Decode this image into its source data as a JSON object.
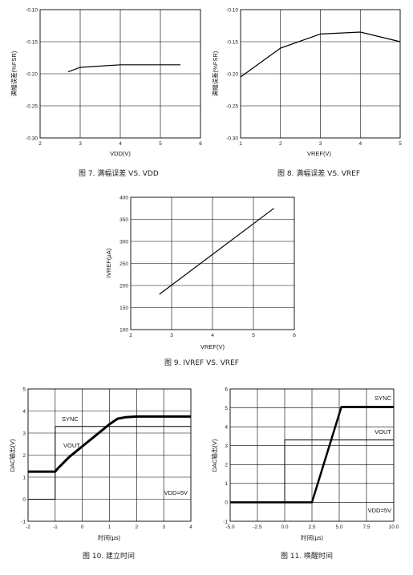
{
  "chart_data": [
    {
      "id": "fig7",
      "type": "line",
      "caption": "图 7. 满幅误差 VS. VDD",
      "xlabel": "VDD(V)",
      "ylabel": "满幅误差(%FSR)",
      "xlim": [
        2,
        6
      ],
      "ylim": [
        -0.3,
        -0.1
      ],
      "xticks": [
        2,
        3,
        4,
        5,
        6
      ],
      "yticks": [
        -0.3,
        -0.25,
        -0.2,
        -0.15,
        -0.1
      ],
      "xtick_labels": [
        "2",
        "3",
        "4",
        "5",
        "6"
      ],
      "ytick_labels": [
        "-0.30",
        "-0.25",
        "-0.20",
        "-0.15",
        "-0.10"
      ],
      "grid": true,
      "series": [
        {
          "x": [
            2.7,
            3.0,
            3.5,
            4.0,
            4.5,
            5.0,
            5.5
          ],
          "y": [
            -0.197,
            -0.19,
            -0.188,
            -0.186,
            -0.186,
            -0.186,
            -0.186
          ]
        }
      ]
    },
    {
      "id": "fig8",
      "type": "line",
      "caption": "图 8. 满幅误差 VS. VREF",
      "xlabel": "VREF(V)",
      "ylabel": "满幅误差(%FSR)",
      "xlim": [
        1,
        5
      ],
      "ylim": [
        -0.3,
        -0.1
      ],
      "xticks": [
        1,
        2,
        3,
        4,
        5
      ],
      "yticks": [
        -0.3,
        -0.25,
        -0.2,
        -0.15,
        -0.1
      ],
      "xtick_labels": [
        "1",
        "2",
        "3",
        "4",
        "5"
      ],
      "ytick_labels": [
        "-0.30",
        "-0.25",
        "-0.20",
        "-0.15",
        "-0.10"
      ],
      "grid": true,
      "series": [
        {
          "x": [
            1,
            2,
            3,
            4,
            5
          ],
          "y": [
            -0.205,
            -0.16,
            -0.138,
            -0.135,
            -0.15
          ]
        }
      ]
    },
    {
      "id": "fig9",
      "type": "line",
      "caption": "图 9. IVREF VS. VREF",
      "xlabel": "VREF(V)",
      "ylabel": "IVREF(μA)",
      "xlim": [
        2,
        6
      ],
      "ylim": [
        100,
        400
      ],
      "xticks": [
        2,
        3,
        4,
        5,
        6
      ],
      "yticks": [
        100,
        150,
        200,
        250,
        300,
        350,
        400
      ],
      "xtick_labels": [
        "2",
        "3",
        "4",
        "5",
        "6"
      ],
      "ytick_labels": [
        "100",
        "150",
        "200",
        "250",
        "300",
        "350",
        "400"
      ],
      "grid": true,
      "series": [
        {
          "x": [
            2.7,
            5.5
          ],
          "y": [
            180,
            375
          ]
        }
      ]
    },
    {
      "id": "fig10",
      "type": "line",
      "caption": "图 10. 建立时间",
      "xlabel": "时间(μs)",
      "ylabel": "DAC输出(V)",
      "xlim": [
        -2,
        4
      ],
      "ylim": [
        -1,
        5
      ],
      "xticks": [
        -2,
        -1,
        0,
        1,
        2,
        3,
        4
      ],
      "yticks": [
        -1,
        0,
        1,
        2,
        3,
        4,
        5
      ],
      "xtick_labels": [
        "-2",
        "-1",
        "0",
        "1",
        "2",
        "3",
        "4"
      ],
      "ytick_labels": [
        "-1",
        "0",
        "1",
        "2",
        "3",
        "4",
        "5"
      ],
      "grid": true,
      "annotations": [
        "SYNC",
        "VOUT",
        "VDD=5V"
      ],
      "series": [
        {
          "name": "SYNC",
          "x": [
            -2,
            -1,
            -1,
            4
          ],
          "y": [
            0,
            0,
            3.3,
            3.3
          ],
          "width": 1
        },
        {
          "name": "VOUT",
          "x": [
            -2,
            -1,
            -0.9,
            -0.5,
            0,
            0.5,
            1.0,
            1.3,
            1.6,
            2.0,
            3.0,
            4.0
          ],
          "y": [
            1.25,
            1.25,
            1.4,
            1.9,
            2.4,
            2.9,
            3.4,
            3.65,
            3.72,
            3.75,
            3.75,
            3.75
          ],
          "width": 3
        }
      ]
    },
    {
      "id": "fig11",
      "type": "line",
      "caption": "图 11. 唤醒时间",
      "xlabel": "时间(μs)",
      "ylabel": "DAC输出(V)",
      "xlim": [
        -5.0,
        10.0
      ],
      "ylim": [
        -1,
        6
      ],
      "xticks": [
        -5.0,
        -2.5,
        0.0,
        2.5,
        5.0,
        7.5,
        10.0
      ],
      "yticks": [
        -1,
        0,
        1,
        2,
        3,
        4,
        5,
        6
      ],
      "xtick_labels": [
        "-5.0",
        "-2.5",
        "0.0",
        "2.5",
        "5.0",
        "7.5",
        "10.0"
      ],
      "ytick_labels": [
        "-1",
        "0",
        "1",
        "2",
        "3",
        "4",
        "5",
        "6"
      ],
      "grid": true,
      "annotations": [
        "SYNC",
        "VOUT",
        "VDD=5V"
      ],
      "series": [
        {
          "name": "SYNC",
          "x": [
            -5.0,
            0.0,
            0.0,
            10.0
          ],
          "y": [
            0,
            0,
            3.3,
            3.3
          ],
          "width": 1
        },
        {
          "name": "VOUT",
          "x": [
            -5.0,
            2.5,
            5.2,
            10.0
          ],
          "y": [
            0,
            0,
            5.05,
            5.05
          ],
          "width": 2.5
        }
      ]
    }
  ]
}
